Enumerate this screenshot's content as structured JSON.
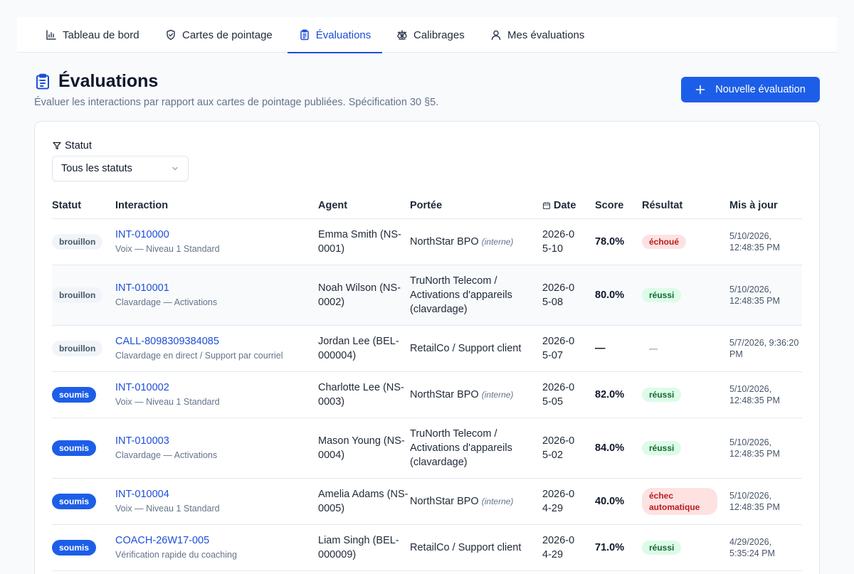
{
  "nav": {
    "tabs": [
      {
        "label": "Tableau de bord",
        "icon": "bar-chart-icon"
      },
      {
        "label": "Cartes de pointage",
        "icon": "shield-check-icon"
      },
      {
        "label": "Évaluations",
        "icon": "clipboard-list-icon"
      },
      {
        "label": "Calibrages",
        "icon": "scale-icon"
      },
      {
        "label": "Mes évaluations",
        "icon": "user-icon"
      }
    ],
    "active": "Évaluations"
  },
  "header": {
    "title": "Évaluations",
    "subtitle": "Évaluer les interactions par rapport aux cartes de pointage publiées. Spécification 30 §5.",
    "new_button_label": "Nouvelle évaluation"
  },
  "filter": {
    "label": "Statut",
    "selected": "Tous les statuts"
  },
  "table": {
    "columns": [
      "Statut",
      "Interaction",
      "Agent",
      "Portée",
      "Date",
      "Score",
      "Résultat",
      "Mis à jour"
    ],
    "rows": [
      {
        "status": "brouillon",
        "interaction": "INT-010000",
        "interaction_sub": "Voix — Niveau 1 Standard",
        "agent": "Emma Smith (NS-0001)",
        "scope": "NorthStar BPO",
        "scope_note": "(interne)",
        "date": "2026-05-10",
        "score": "78.0%",
        "result": "échoué",
        "updated": "5/10/2026, 12:48:35 PM"
      },
      {
        "status": "brouillon",
        "interaction": "INT-010001",
        "interaction_sub": "Clavardage — Activations",
        "agent": "Noah Wilson (NS-0002)",
        "scope": "TruNorth Telecom / Activations d'appareils (clavardage)",
        "scope_note": "",
        "date": "2026-05-08",
        "score": "80.0%",
        "result": "réussi",
        "updated": "5/10/2026, 12:48:35 PM"
      },
      {
        "status": "brouillon",
        "interaction": "CALL-8098309384085",
        "interaction_sub": "Clavardage en direct / Support par courriel",
        "agent": "Jordan Lee (BEL-000004)",
        "scope": "RetailCo / Support client",
        "scope_note": "",
        "date": "2026-05-07",
        "score": "—",
        "result": "—",
        "updated": "5/7/2026, 9:36:20 PM"
      },
      {
        "status": "soumis",
        "interaction": "INT-010002",
        "interaction_sub": "Voix — Niveau 1 Standard",
        "agent": "Charlotte Lee (NS-0003)",
        "scope": "NorthStar BPO",
        "scope_note": "(interne)",
        "date": "2026-05-05",
        "score": "82.0%",
        "result": "réussi",
        "updated": "5/10/2026, 12:48:35 PM"
      },
      {
        "status": "soumis",
        "interaction": "INT-010003",
        "interaction_sub": "Clavardage — Activations",
        "agent": "Mason Young (NS-0004)",
        "scope": "TruNorth Telecom / Activations d'appareils (clavardage)",
        "scope_note": "",
        "date": "2026-05-02",
        "score": "84.0%",
        "result": "réussi",
        "updated": "5/10/2026, 12:48:35 PM"
      },
      {
        "status": "soumis",
        "interaction": "INT-010004",
        "interaction_sub": "Voix — Niveau 1 Standard",
        "agent": "Amelia Adams (NS-0005)",
        "scope": "NorthStar BPO",
        "scope_note": "(interne)",
        "date": "2026-04-29",
        "score": "40.0%",
        "result": "échec automatique",
        "updated": "5/10/2026, 12:48:35 PM"
      },
      {
        "status": "soumis",
        "interaction": "COACH-26W17-005",
        "interaction_sub": "Vérification rapide du coaching",
        "agent": "Liam Singh (BEL-000009)",
        "scope": "RetailCo / Support client",
        "scope_note": "",
        "date": "2026-04-29",
        "score": "71.0%",
        "result": "réussi",
        "updated": "4/29/2026, 5:35:24 PM"
      }
    ]
  },
  "colors": {
    "accent": "#1d5ee8",
    "link": "#1d4ed8",
    "pass_bg": "#dcfce7",
    "fail_bg": "#fee2e2"
  }
}
